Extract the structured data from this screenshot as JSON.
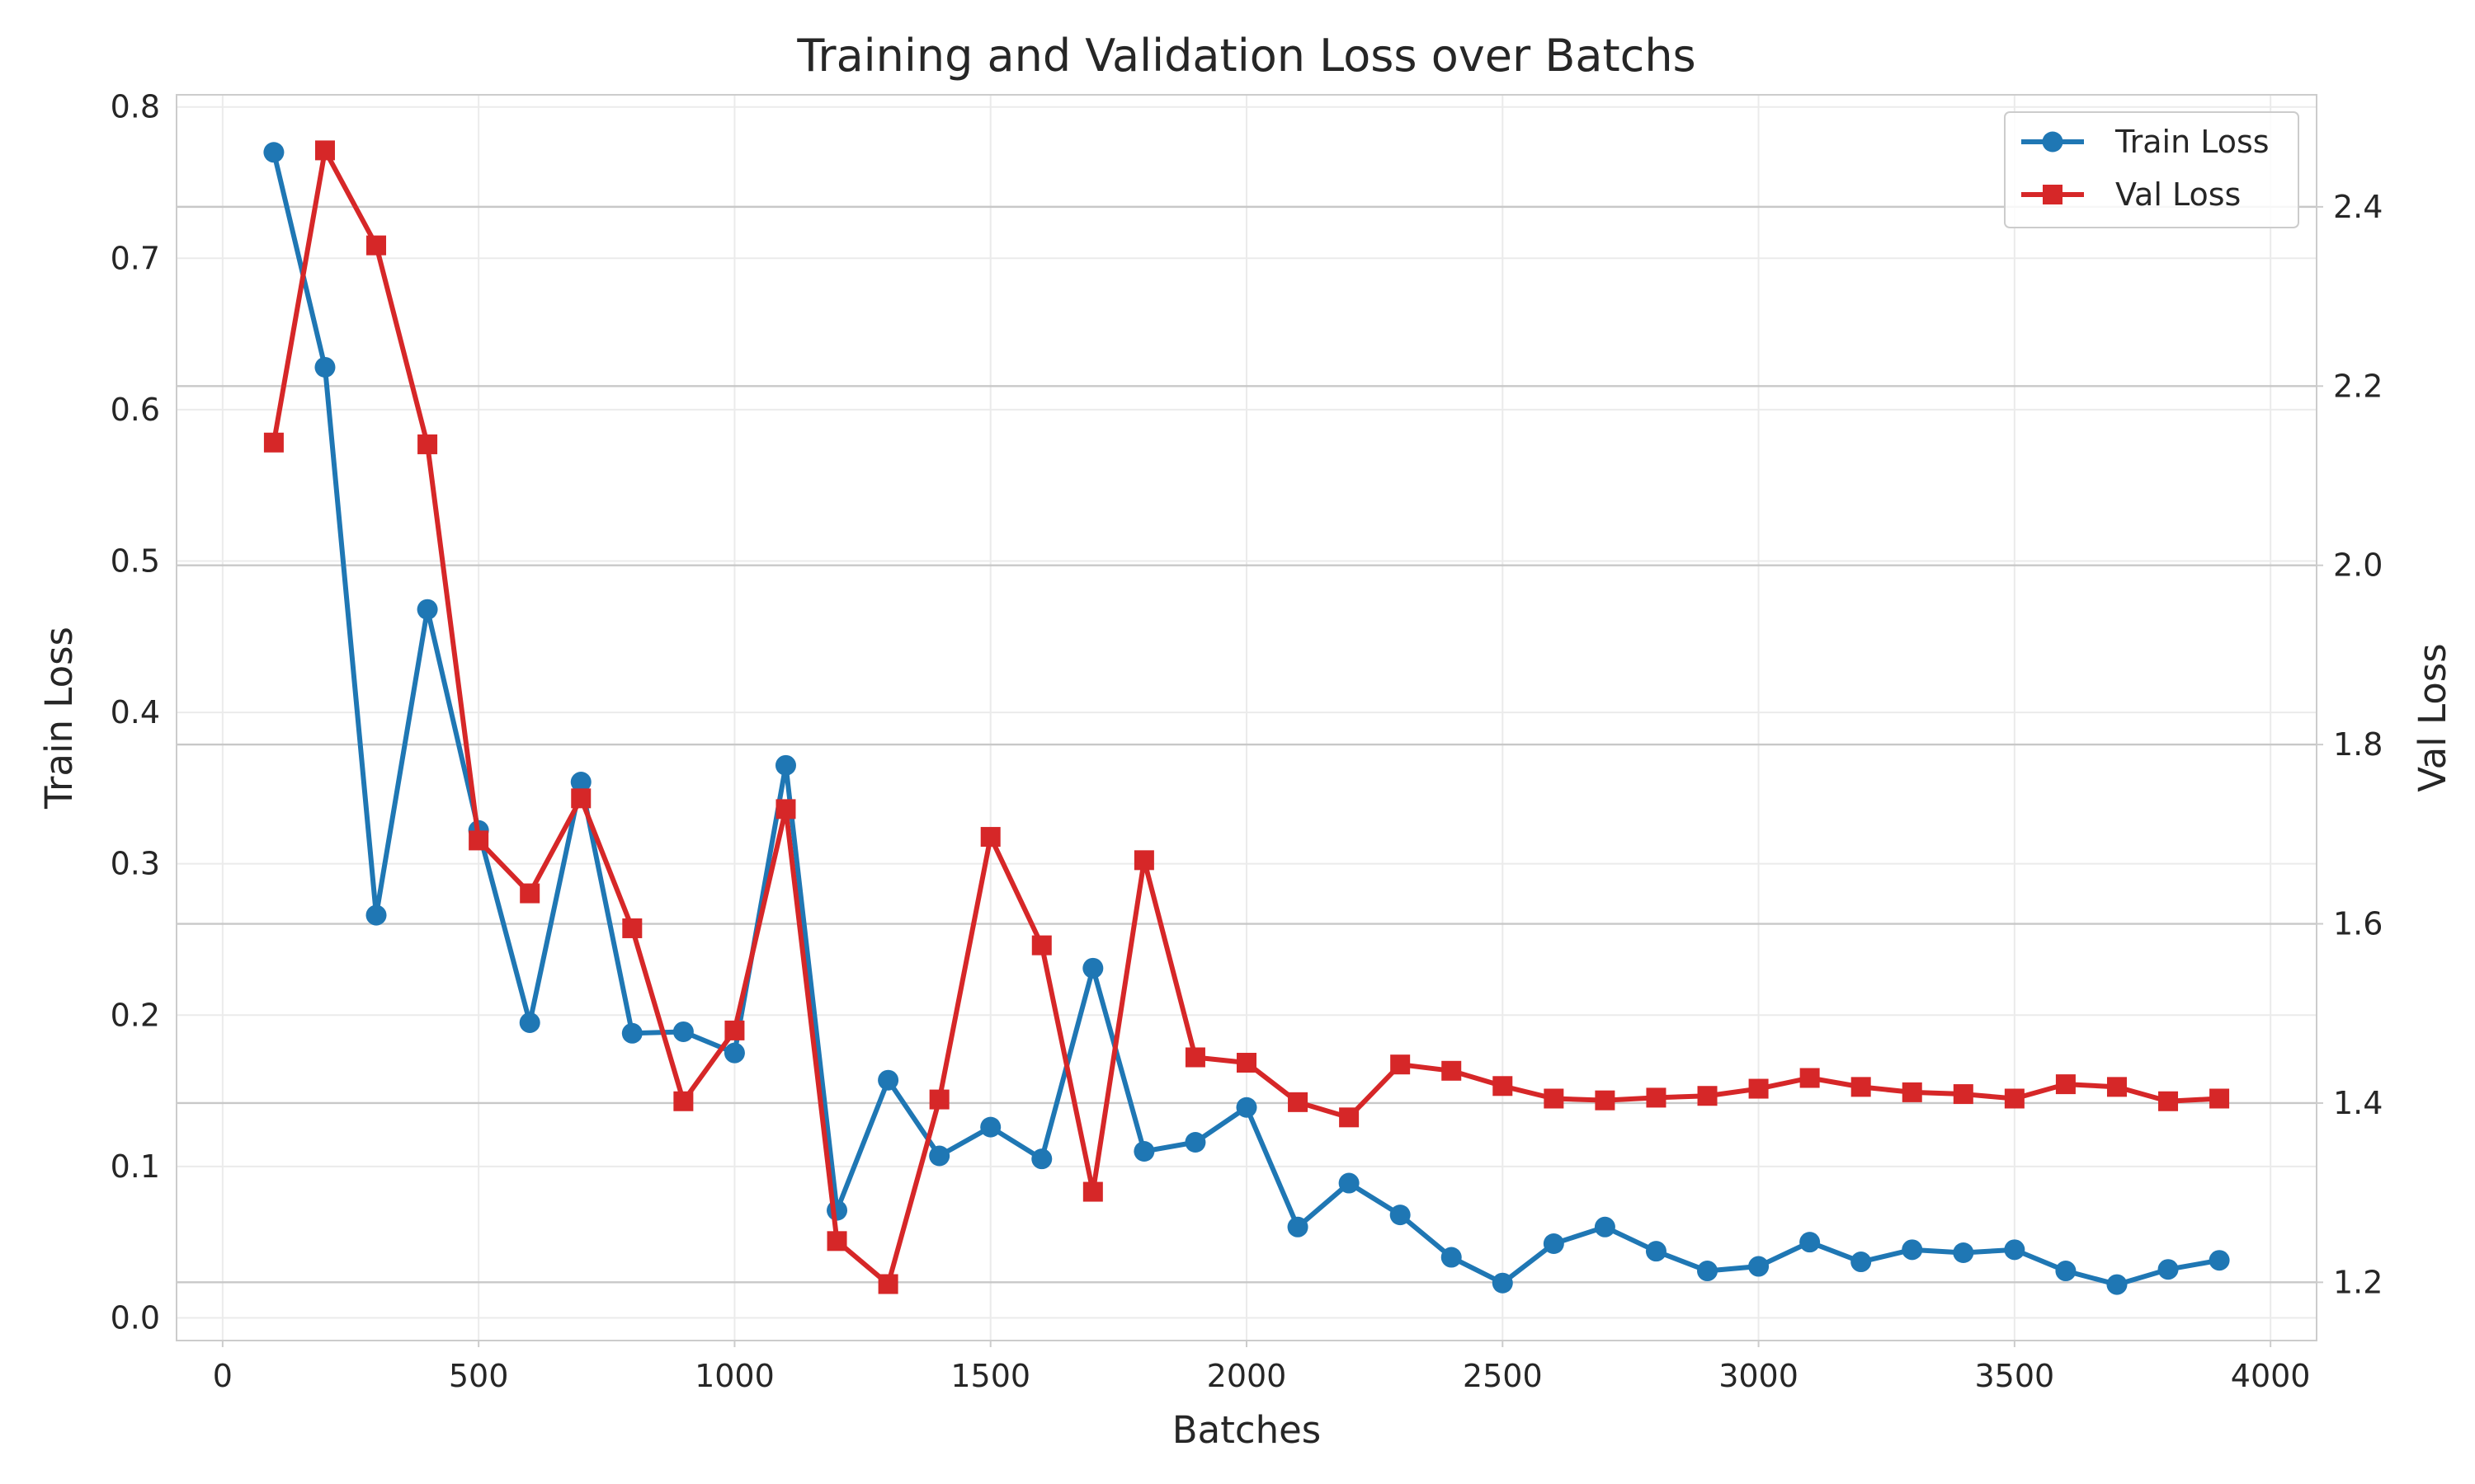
{
  "chart_data": {
    "type": "line",
    "title": "Training and Validation Loss over Batchs",
    "xlabel": "Batches",
    "ylabel_left": "Train Loss",
    "ylabel_right": "Val Loss",
    "xlim": [
      -90,
      4090
    ],
    "ylim_left": [
      -0.015,
      0.808
    ],
    "ylim_right": [
      1.135,
      2.525
    ],
    "x_ticks": [
      0,
      500,
      1000,
      1500,
      2000,
      2500,
      3000,
      3500,
      4000
    ],
    "x_tick_labels": [
      "0",
      "500",
      "1000",
      "1500",
      "2000",
      "2500",
      "3000",
      "3500",
      "4000"
    ],
    "y_left_ticks": [
      0.0,
      0.1,
      0.2,
      0.3,
      0.4,
      0.5,
      0.6,
      0.7,
      0.8
    ],
    "y_left_tick_labels": [
      "0.0",
      "0.1",
      "0.2",
      "0.3",
      "0.4",
      "0.5",
      "0.6",
      "0.7",
      "0.8"
    ],
    "y_right_ticks": [
      1.2,
      1.4,
      1.6,
      1.8,
      2.0,
      2.2,
      2.4
    ],
    "y_right_tick_labels": [
      "1.2",
      "1.4",
      "1.6",
      "1.8",
      "2.0",
      "2.2",
      "2.4"
    ],
    "grid": true,
    "legend_position": "top-right",
    "x": [
      100,
      200,
      300,
      400,
      500,
      600,
      700,
      800,
      900,
      1000,
      1100,
      1200,
      1300,
      1400,
      1500,
      1600,
      1700,
      1800,
      1900,
      2000,
      2100,
      2200,
      2300,
      2400,
      2500,
      2600,
      2700,
      2800,
      2900,
      3000,
      3100,
      3200,
      3300,
      3400,
      3500,
      3600,
      3700,
      3800,
      3900
    ],
    "series": [
      {
        "name": "Train Loss",
        "axis": "left",
        "color": "#1f77b4",
        "marker": "circle",
        "values": [
          0.77,
          0.628,
          0.266,
          0.468,
          0.322,
          0.195,
          0.354,
          0.188,
          0.189,
          0.175,
          0.365,
          0.071,
          0.157,
          0.107,
          0.126,
          0.105,
          0.231,
          0.11,
          0.116,
          0.139,
          0.06,
          0.089,
          0.068,
          0.04,
          0.023,
          0.049,
          0.06,
          0.044,
          0.031,
          0.034,
          0.05,
          0.037,
          0.045,
          0.043,
          0.045,
          0.031,
          0.022,
          0.032,
          0.038
        ]
      },
      {
        "name": "Val Loss",
        "axis": "right",
        "color": "#d62728",
        "marker": "square",
        "values": [
          2.137,
          2.463,
          2.357,
          2.135,
          1.693,
          1.634,
          1.74,
          1.595,
          1.402,
          1.481,
          1.728,
          1.246,
          1.198,
          1.404,
          1.697,
          1.576,
          1.301,
          1.671,
          1.451,
          1.445,
          1.401,
          1.384,
          1.443,
          1.436,
          1.419,
          1.405,
          1.403,
          1.406,
          1.408,
          1.416,
          1.428,
          1.418,
          1.412,
          1.41,
          1.405,
          1.421,
          1.418,
          1.402,
          1.405
        ]
      }
    ]
  }
}
